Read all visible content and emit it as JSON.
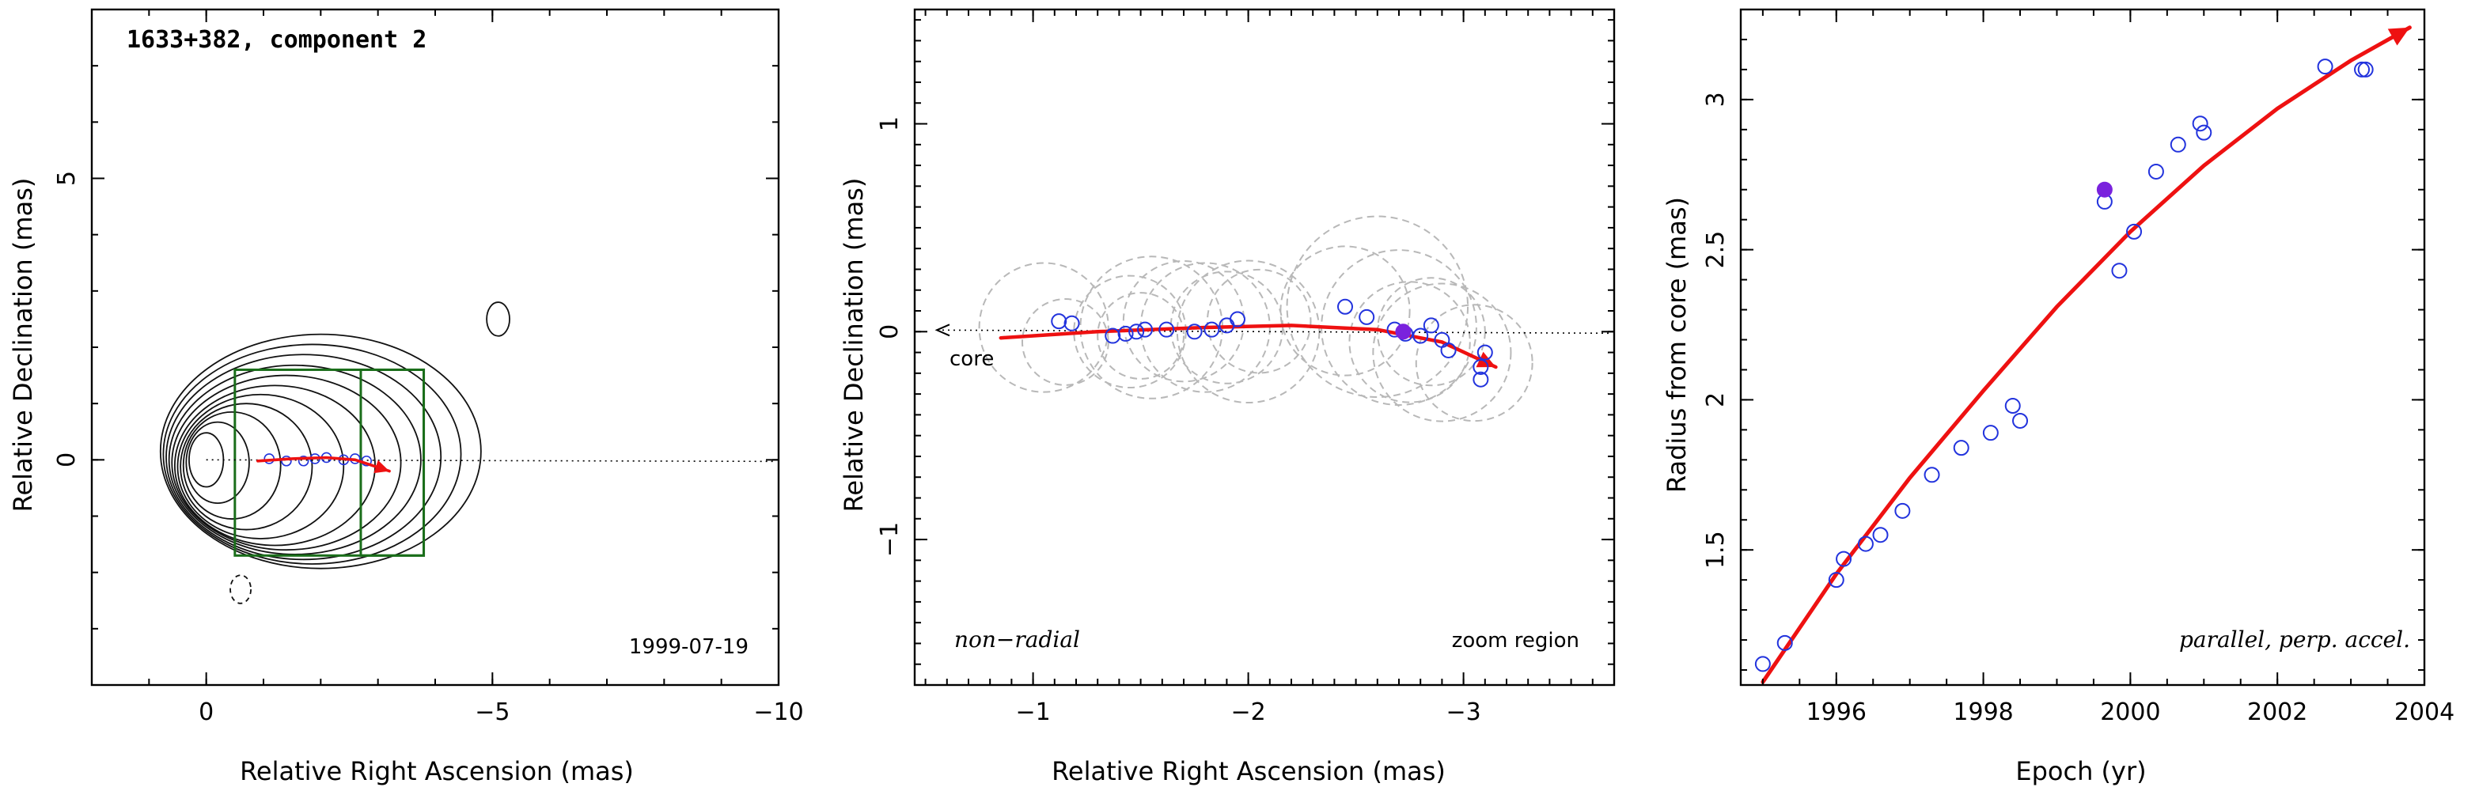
{
  "colors": {
    "contour": "#111111",
    "box": "#1a6e1a",
    "track": "#ee1111",
    "points": "#2233dd",
    "highlight": "#7a22dd",
    "circles": "#b8b8b8",
    "axis": "#000000"
  },
  "chart_data": [
    {
      "type": "scatter",
      "panel": "contour-map",
      "title": "1633+382, component 2",
      "epoch_label": "1999-07-19",
      "xlabel": "Relative Right Ascension (mas)",
      "ylabel": "Relative Declination (mas)",
      "xlim": [
        2,
        -10
      ],
      "ylim": [
        -4,
        8
      ],
      "xticks": [
        0,
        -5,
        -10
      ],
      "yticks": [
        0,
        5
      ],
      "contours": {
        "center": [
          0,
          0
        ],
        "levels": [
          {
            "semi_x": 0.3,
            "semi_y": 0.48,
            "offset_ra": 0.0,
            "offset_dec": 0.0
          },
          {
            "semi_x": 0.55,
            "semi_y": 0.72,
            "offset_ra": 0.2,
            "offset_dec": -0.05
          },
          {
            "semi_x": 0.85,
            "semi_y": 0.95,
            "offset_ra": 0.45,
            "offset_dec": -0.1
          },
          {
            "semi_x": 1.15,
            "semi_y": 1.12,
            "offset_ra": 0.7,
            "offset_dec": -0.12
          },
          {
            "semi_x": 1.45,
            "semi_y": 1.28,
            "offset_ra": 0.95,
            "offset_dec": -0.12
          },
          {
            "semi_x": 1.75,
            "semi_y": 1.42,
            "offset_ra": 1.2,
            "offset_dec": -0.1
          },
          {
            "semi_x": 2.0,
            "semi_y": 1.55,
            "offset_ra": 1.4,
            "offset_dec": -0.05
          },
          {
            "semi_x": 2.2,
            "semi_y": 1.68,
            "offset_ra": 1.55,
            "offset_dec": 0.0
          },
          {
            "semi_x": 2.4,
            "semi_y": 1.82,
            "offset_ra": 1.7,
            "offset_dec": 0.05
          },
          {
            "semi_x": 2.6,
            "semi_y": 1.95,
            "offset_ra": 1.85,
            "offset_dec": 0.1
          },
          {
            "semi_x": 2.8,
            "semi_y": 2.08,
            "offset_ra": 2.0,
            "offset_dec": 0.15
          }
        ],
        "isolated": [
          {
            "ra": -5.1,
            "dec": 2.5,
            "semi_x": 0.2,
            "semi_y": 0.3,
            "dashed": false
          },
          {
            "ra": -0.6,
            "dec": -2.3,
            "semi_x": 0.18,
            "semi_y": 0.25,
            "dashed": true
          }
        ]
      },
      "zoom_boxes": [
        {
          "ra_range": [
            -0.5,
            -3.8
          ],
          "dec_range": [
            -1.7,
            1.6
          ]
        },
        {
          "ra_range": [
            -2.7,
            -3.8
          ],
          "dec_range": [
            -1.7,
            1.6
          ]
        }
      ],
      "track": [
        [
          -0.9,
          -0.02
        ],
        [
          -1.5,
          0.02
        ],
        [
          -2.1,
          0.04
        ],
        [
          -2.6,
          0.0
        ],
        [
          -3.2,
          -0.2
        ]
      ],
      "points": [
        [
          -1.1,
          0.02
        ],
        [
          -1.4,
          -0.02
        ],
        [
          -1.7,
          -0.02
        ],
        [
          -1.9,
          0.02
        ],
        [
          -2.1,
          0.04
        ],
        [
          -2.4,
          0.0
        ],
        [
          -2.6,
          0.02
        ],
        [
          -2.8,
          -0.02
        ]
      ]
    },
    {
      "type": "scatter",
      "panel": "zoom-region",
      "xlabel": "Relative Right Ascension (mas)",
      "ylabel": "Relative Declination (mas)",
      "xlim": [
        -0.45,
        -3.7
      ],
      "ylim": [
        -1.7,
        1.55
      ],
      "xticks": [
        -1,
        -2,
        -3
      ],
      "yticks": [
        -1,
        0,
        1
      ],
      "core_label": "core",
      "bottom_left_label": "non−radial",
      "bottom_right_label": "zoom region",
      "track": [
        [
          -0.85,
          -0.03
        ],
        [
          -1.3,
          0.0
        ],
        [
          -1.8,
          0.02
        ],
        [
          -2.2,
          0.03
        ],
        [
          -2.6,
          0.01
        ],
        [
          -2.9,
          -0.05
        ],
        [
          -3.15,
          -0.17
        ]
      ],
      "points": [
        [
          -1.12,
          0.05
        ],
        [
          -1.18,
          0.04
        ],
        [
          -1.37,
          -0.02
        ],
        [
          -1.43,
          -0.01
        ],
        [
          -1.48,
          0.0
        ],
        [
          -1.52,
          0.01
        ],
        [
          -1.62,
          0.01
        ],
        [
          -1.75,
          0.0
        ],
        [
          -1.83,
          0.01
        ],
        [
          -1.9,
          0.03
        ],
        [
          -1.95,
          0.06
        ],
        [
          -2.45,
          0.12
        ],
        [
          -2.55,
          0.07
        ],
        [
          -2.68,
          0.01
        ],
        [
          -2.73,
          -0.01
        ],
        [
          -2.8,
          -0.02
        ],
        [
          -2.85,
          0.03
        ],
        [
          -2.9,
          -0.04
        ],
        [
          -2.93,
          -0.09
        ],
        [
          -3.1,
          -0.1
        ],
        [
          -3.08,
          -0.17
        ],
        [
          -3.08,
          -0.23
        ]
      ],
      "highlight_point": [
        -2.72,
        0.0
      ],
      "circles": [
        {
          "ra": -1.05,
          "dec": 0.02,
          "r": 0.3
        },
        {
          "ra": -1.15,
          "dec": -0.05,
          "r": 0.2
        },
        {
          "ra": -1.45,
          "dec": 0.0,
          "r": 0.26
        },
        {
          "ra": -1.5,
          "dec": -0.02,
          "r": 0.2
        },
        {
          "ra": -1.55,
          "dec": 0.02,
          "r": 0.33
        },
        {
          "ra": -1.7,
          "dec": 0.05,
          "r": 0.28
        },
        {
          "ra": -1.8,
          "dec": 0.02,
          "r": 0.3
        },
        {
          "ra": -1.9,
          "dec": 0.02,
          "r": 0.26
        },
        {
          "ra": -2.0,
          "dec": 0.0,
          "r": 0.33
        },
        {
          "ra": -2.05,
          "dec": 0.05,
          "r": 0.24
        },
        {
          "ra": -2.45,
          "dec": 0.1,
          "r": 0.3
        },
        {
          "ra": -2.6,
          "dec": 0.12,
          "r": 0.42
        },
        {
          "ra": -2.7,
          "dec": 0.02,
          "r": 0.36
        },
        {
          "ra": -2.75,
          "dec": -0.05,
          "r": 0.28
        },
        {
          "ra": -2.85,
          "dec": 0.0,
          "r": 0.25
        },
        {
          "ra": -2.9,
          "dec": -0.1,
          "r": 0.32
        },
        {
          "ra": -3.05,
          "dec": -0.15,
          "r": 0.27
        }
      ]
    },
    {
      "type": "scatter",
      "panel": "radius-vs-epoch",
      "xlabel": "Epoch (yr)",
      "ylabel": "Radius from core (mas)",
      "xlim": [
        1994.7,
        2004.0
      ],
      "ylim": [
        1.05,
        3.3
      ],
      "xticks": [
        1996,
        1998,
        2000,
        2002,
        2004
      ],
      "xtick_labels": [
        "1996",
        "1998",
        "2000",
        "2002",
        "2004"
      ],
      "yticks": [
        1.5,
        2,
        2.5,
        3
      ],
      "ytick_labels": [
        "1.5",
        "2",
        "2.5",
        "3"
      ],
      "annotation": "parallel, perp. accel.",
      "fit": [
        [
          1995.0,
          1.06
        ],
        [
          1996.0,
          1.42
        ],
        [
          1997.0,
          1.74
        ],
        [
          1998.0,
          2.03
        ],
        [
          1999.0,
          2.31
        ],
        [
          2000.0,
          2.56
        ],
        [
          2001.0,
          2.78
        ],
        [
          2002.0,
          2.97
        ],
        [
          2003.0,
          3.13
        ],
        [
          2003.8,
          3.24
        ]
      ],
      "points": [
        [
          1995.0,
          1.12
        ],
        [
          1995.3,
          1.19
        ],
        [
          1996.0,
          1.4
        ],
        [
          1996.1,
          1.47
        ],
        [
          1996.4,
          1.52
        ],
        [
          1996.6,
          1.55
        ],
        [
          1996.9,
          1.63
        ],
        [
          1997.3,
          1.75
        ],
        [
          1997.7,
          1.84
        ],
        [
          1998.1,
          1.89
        ],
        [
          1998.4,
          1.98
        ],
        [
          1998.5,
          1.93
        ],
        [
          1999.65,
          2.66
        ],
        [
          1999.85,
          2.43
        ],
        [
          2000.05,
          2.56
        ],
        [
          2000.35,
          2.76
        ],
        [
          2000.65,
          2.85
        ],
        [
          2000.95,
          2.92
        ],
        [
          2001.0,
          2.89
        ],
        [
          2002.65,
          3.11
        ],
        [
          2003.15,
          3.1
        ],
        [
          2003.2,
          3.1
        ]
      ],
      "highlight_point": [
        1999.65,
        2.7
      ]
    }
  ]
}
